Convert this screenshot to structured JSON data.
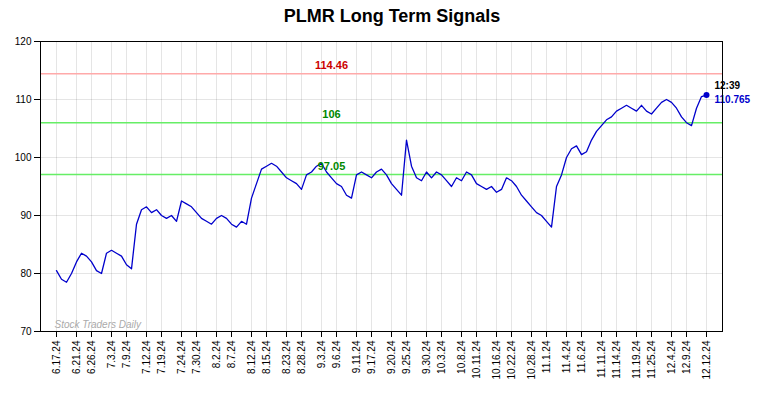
{
  "chart_data": {
    "type": "line",
    "title": "PLMR Long Term Signals",
    "color": "#0000cc",
    "grid": true,
    "ylim": [
      70,
      120
    ],
    "yticks": [
      70,
      80,
      90,
      100,
      110,
      120
    ],
    "categories": [
      "6.17.24",
      null,
      null,
      null,
      "6.21.24",
      null,
      null,
      "6.26.24",
      null,
      null,
      null,
      "7.3.24",
      null,
      null,
      "7.9.24",
      null,
      null,
      null,
      "7.12.24",
      null,
      null,
      "7.19.24",
      null,
      null,
      null,
      "7.24.24",
      null,
      null,
      "7.30.24",
      null,
      null,
      null,
      "8.2.24",
      null,
      null,
      "8.7.24",
      null,
      null,
      null,
      "8.12.24",
      null,
      null,
      "8.15.24",
      null,
      null,
      null,
      "8.23.24",
      null,
      null,
      "8.28.24",
      null,
      null,
      null,
      "9.3.24",
      null,
      null,
      "9.6.24",
      null,
      null,
      null,
      "9.11.24",
      null,
      null,
      "9.17.24",
      null,
      null,
      null,
      "9.20.24",
      null,
      null,
      "9.25.24",
      null,
      null,
      null,
      "9.30.24",
      null,
      null,
      "10.3.24",
      null,
      null,
      null,
      "10.8.24",
      null,
      null,
      "10.11.24",
      null,
      null,
      null,
      "10.16.24",
      null,
      null,
      "10.22.24",
      null,
      null,
      null,
      "10.28.24",
      null,
      null,
      "11.1.24",
      null,
      null,
      null,
      "11.4.24",
      null,
      null,
      "11.6.24",
      null,
      null,
      null,
      "11.11.24",
      null,
      null,
      "11.14.24",
      null,
      null,
      null,
      "11.19.24",
      null,
      null,
      "11.25.24",
      null,
      null,
      null,
      "12.4.24",
      null,
      null,
      "12.9.24",
      null,
      null,
      null,
      "12.12.24"
    ],
    "values": [
      80.5,
      79.0,
      78.5,
      80.0,
      82.0,
      83.5,
      83.0,
      82.0,
      80.5,
      80.0,
      83.5,
      84.0,
      83.5,
      83.0,
      81.5,
      80.8,
      88.5,
      91.0,
      91.5,
      90.5,
      91.0,
      90.0,
      89.5,
      90.0,
      89.0,
      92.5,
      92.0,
      91.5,
      90.5,
      89.5,
      89.0,
      88.5,
      89.5,
      90.0,
      89.5,
      88.5,
      88.0,
      89.0,
      88.5,
      93.0,
      95.5,
      98.0,
      98.5,
      99.0,
      98.5,
      97.5,
      96.5,
      96.0,
      95.5,
      94.5,
      97.0,
      97.5,
      98.5,
      99.0,
      97.5,
      96.5,
      95.5,
      95.0,
      93.5,
      93.0,
      97.0,
      97.5,
      97.0,
      96.5,
      97.5,
      98.0,
      97.0,
      95.5,
      94.5,
      93.5,
      103.0,
      98.5,
      96.5,
      96.0,
      97.5,
      96.5,
      97.5,
      97.0,
      96.0,
      95.0,
      96.5,
      96.0,
      97.5,
      97.0,
      95.5,
      95.0,
      94.5,
      95.0,
      94.0,
      94.5,
      96.5,
      96.0,
      95.0,
      93.5,
      92.5,
      91.5,
      90.5,
      90.0,
      89.0,
      88.0,
      95.0,
      97.0,
      100.0,
      101.5,
      102.0,
      100.5,
      101.0,
      103.0,
      104.5,
      105.5,
      106.5,
      107.0,
      108.0,
      108.5,
      109.0,
      108.5,
      108.0,
      109.0,
      108.0,
      107.5,
      108.5,
      109.5,
      110.0,
      109.5,
      108.5,
      107.0,
      106.0,
      105.5,
      108.5,
      110.5,
      110.765
    ],
    "hlines": [
      {
        "value": 114.46,
        "label": "114.46",
        "color": "#ffaaaa",
        "label_color": "#cc0000"
      },
      {
        "value": 106.0,
        "label": "106",
        "color": "#66ee66",
        "label_color": "#008800"
      },
      {
        "value": 97.05,
        "label": "97.05",
        "color": "#66ee66",
        "label_color": "#008800"
      }
    ],
    "last_point": {
      "time": "12:39",
      "value": 110.765
    },
    "watermark": "Stock Traders Daily"
  }
}
